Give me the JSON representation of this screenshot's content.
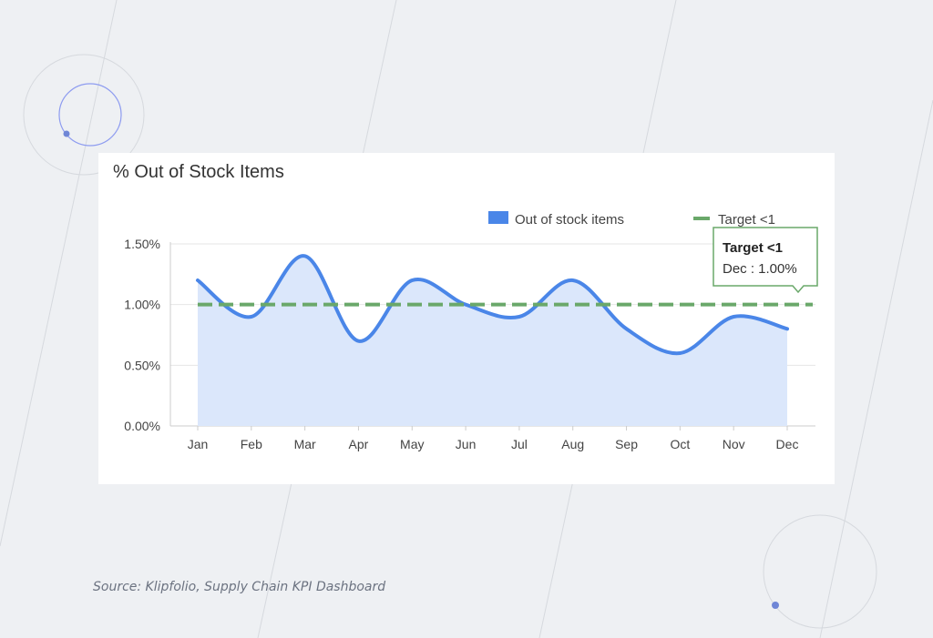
{
  "colors": {
    "background": "#eef0f3",
    "series": "#4a86e8",
    "area": "#dbe7fb",
    "target": "#6aa86a",
    "decor": "#8e9cf0"
  },
  "source": "Source: Klipfolio, Supply Chain KPI Dashboard",
  "chart_data": {
    "type": "area",
    "title": "% Out of Stock Items",
    "categories": [
      "Jan",
      "Feb",
      "Mar",
      "Apr",
      "May",
      "Jun",
      "Jul",
      "Aug",
      "Sep",
      "Oct",
      "Nov",
      "Dec"
    ],
    "series": [
      {
        "name": "Out of stock items",
        "values": [
          1.2,
          0.9,
          1.4,
          0.7,
          1.2,
          1.0,
          0.9,
          1.2,
          0.8,
          0.6,
          0.9,
          0.8
        ]
      }
    ],
    "target": {
      "name": "Target <1",
      "value": 1.0
    },
    "ylim": [
      0,
      1.5
    ],
    "yticks": [
      0,
      0.5,
      1.0,
      1.5
    ],
    "ytick_labels": [
      "0.00%",
      "0.50%",
      "1.00%",
      "1.50%"
    ],
    "legend_position": "top-right",
    "tooltip": {
      "title": "Target <1",
      "text": "Dec : 1.00%"
    }
  }
}
